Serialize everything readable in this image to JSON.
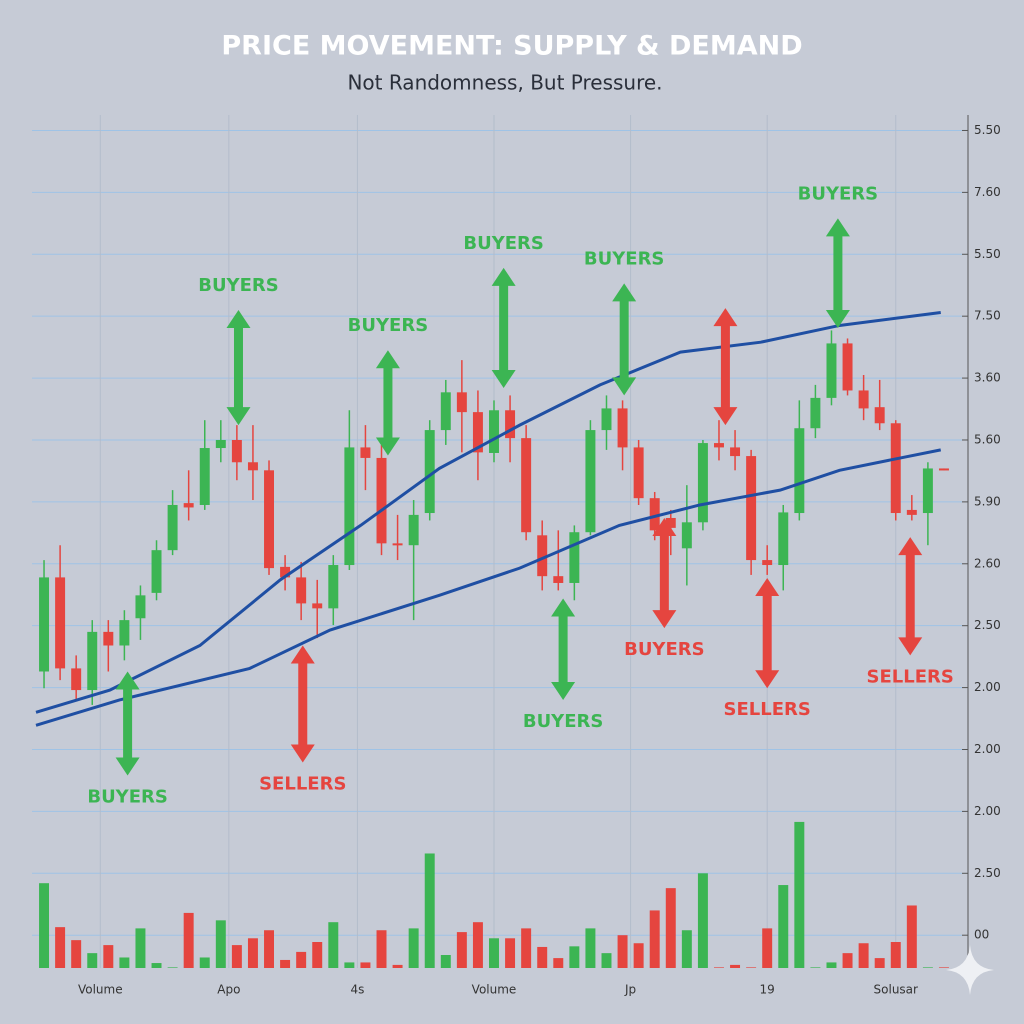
{
  "chart_data": {
    "type": "candlestick",
    "title": "PRICE MOVEMENT: SUPPLY & DEMAND",
    "subtitle": "Not Randomness, But Pressure.",
    "open": [
      4.26,
      5.78,
      4.31,
      3.96,
      4.9,
      4.68,
      5.12,
      5.53,
      6.22,
      6.98,
      6.95,
      7.87,
      8.0,
      7.64,
      7.51,
      5.95,
      5.78,
      5.36,
      5.28,
      5.98,
      7.88,
      7.71,
      6.33,
      6.3,
      6.82,
      8.16,
      8.77,
      8.45,
      7.79,
      8.48,
      8.03,
      6.46,
      5.8,
      5.69,
      6.51,
      8.16,
      8.51,
      7.88,
      7.06,
      6.74,
      6.25,
      6.67,
      7.95,
      7.88,
      7.74,
      6.06,
      5.98,
      6.82,
      8.19,
      8.68,
      9.56,
      8.8,
      8.53,
      8.27,
      6.87,
      6.82,
      7.54
    ],
    "high": [
      6.06,
      6.3,
      4.52,
      5.09,
      5.09,
      5.25,
      5.65,
      6.38,
      7.19,
      7.51,
      8.32,
      8.32,
      8.24,
      8.24,
      7.67,
      6.14,
      6.03,
      5.74,
      6.14,
      8.48,
      8.24,
      7.92,
      6.79,
      7.03,
      8.32,
      8.97,
      9.29,
      8.8,
      8.64,
      8.72,
      8.24,
      6.7,
      6.54,
      6.62,
      8.32,
      8.72,
      8.64,
      8.0,
      7.16,
      6.87,
      7.27,
      8.0,
      8.32,
      8.16,
      7.84,
      6.3,
      6.95,
      8.64,
      8.89,
      9.77,
      9.64,
      9.05,
      8.97,
      8.32,
      7.11,
      7.64,
      7.54
    ],
    "low": [
      3.99,
      4.12,
      3.8,
      3.72,
      4.26,
      4.44,
      4.77,
      5.41,
      6.14,
      6.7,
      6.87,
      7.64,
      7.35,
      7.03,
      5.82,
      5.57,
      5.09,
      4.8,
      5.01,
      5.9,
      7.19,
      6.14,
      6.06,
      5.09,
      6.7,
      7.92,
      7.8,
      7.35,
      7.64,
      7.64,
      6.38,
      5.57,
      5.57,
      5.41,
      6.46,
      7.84,
      7.51,
      6.95,
      6.38,
      6.14,
      5.65,
      6.54,
      7.67,
      7.51,
      5.82,
      5.82,
      5.57,
      6.7,
      8.03,
      8.56,
      8.72,
      8.32,
      8.16,
      6.7,
      6.7,
      6.3,
      7.51
    ],
    "close": [
      5.78,
      4.31,
      3.96,
      4.9,
      4.68,
      5.09,
      5.49,
      6.22,
      6.95,
      6.91,
      7.87,
      8.0,
      7.64,
      7.51,
      5.93,
      5.78,
      5.36,
      5.28,
      5.98,
      7.88,
      7.71,
      6.33,
      6.3,
      6.79,
      8.16,
      8.77,
      8.45,
      7.8,
      8.48,
      8.03,
      6.51,
      5.8,
      5.69,
      6.51,
      8.16,
      8.51,
      7.88,
      7.06,
      6.54,
      6.58,
      6.67,
      7.95,
      7.88,
      7.74,
      6.06,
      5.98,
      6.83,
      8.19,
      8.68,
      9.56,
      8.8,
      8.51,
      8.27,
      6.82,
      6.79,
      7.54,
      7.51
    ],
    "volume": [
      0.84,
      0.13,
      -0.08,
      -0.29,
      -0.16,
      -0.36,
      0.11,
      -0.45,
      -0.52,
      0.36,
      -0.36,
      0.24,
      -0.16,
      -0.05,
      0.08,
      -0.4,
      -0.27,
      -0.11,
      0.21,
      -0.44,
      -0.44,
      0.08,
      -0.48,
      0.11,
      1.32,
      -0.32,
      0.05,
      0.21,
      -0.05,
      -0.05,
      0.11,
      -0.19,
      -0.37,
      -0.18,
      0.11,
      -0.29,
      0.0,
      -0.13,
      0.4,
      0.76,
      0.08,
      1.0,
      -0.52,
      -0.48,
      -0.52,
      0.11,
      0.81,
      1.83,
      -0.52,
      -0.44,
      -0.29,
      -0.13,
      -0.37,
      -0.11,
      0.48,
      -0.52,
      -0.52
    ],
    "up_color": "#3cb553",
    "down_color": "#e5453f",
    "line_color": "#1f4fa3",
    "series": [
      {
        "x": [
          -0.5,
          4.1,
          9.7,
          14.7,
          19.7,
          24.6,
          29.6,
          34.6,
          39.6,
          44.6,
          49.5,
          55.8
        ],
        "values": [
          3.6,
          3.96,
          4.68,
          5.74,
          6.62,
          7.54,
          8.24,
          8.89,
          9.42,
          9.58,
          9.85,
          10.06
        ]
      },
      {
        "x": [
          -0.5,
          4.7,
          12.8,
          17.8,
          24.6,
          29.6,
          35.8,
          40.8,
          45.8,
          49.5,
          53.3,
          55.8
        ],
        "values": [
          3.39,
          3.8,
          4.31,
          4.93,
          5.49,
          5.93,
          6.62,
          6.95,
          7.19,
          7.51,
          7.71,
          7.84
        ]
      }
    ],
    "annotations": [
      {
        "text": "BUYERS",
        "color": "#3cb553",
        "x": 5.2,
        "from": 4.26,
        "to": 2.58,
        "label": "bottom"
      },
      {
        "text": "BUYERS",
        "color": "#3cb553",
        "x": 12.1,
        "from": 10.1,
        "to": 8.24,
        "label": "top"
      },
      {
        "text": "SELLERS",
        "color": "#e5453f",
        "x": 16.1,
        "from": 4.68,
        "to": 2.79,
        "label": "bottom"
      },
      {
        "text": "BUYERS",
        "color": "#3cb553",
        "x": 21.4,
        "from": 9.45,
        "to": 7.75,
        "label": "top"
      },
      {
        "text": "BUYERS",
        "color": "#3cb553",
        "x": 28.6,
        "from": 10.78,
        "to": 8.84,
        "label": "top"
      },
      {
        "text": "BUYERS",
        "color": "#3cb553",
        "x": 32.3,
        "from": 5.44,
        "to": 3.8,
        "label": "bottom"
      },
      {
        "text": "BUYERS",
        "color": "#3cb553",
        "x": 36.1,
        "from": 10.53,
        "to": 8.72,
        "label": "top"
      },
      {
        "text": "BUYERS",
        "color": "#e5453f",
        "x": 38.6,
        "from": 6.74,
        "to": 4.96,
        "label": "bottom"
      },
      {
        "color": "#e5453f",
        "x": 42.4,
        "from": 10.13,
        "to": 8.24
      },
      {
        "text": "SELLERS",
        "color": "#e5453f",
        "x": 45.0,
        "from": 5.77,
        "to": 3.99,
        "label": "bottom"
      },
      {
        "text": "BUYERS",
        "color": "#3cb553",
        "x": 49.4,
        "from": 11.58,
        "to": 9.81,
        "label": "top"
      },
      {
        "text": "SELLERS",
        "color": "#e5453f",
        "x": 53.9,
        "from": 6.43,
        "to": 4.52,
        "label": "bottom"
      }
    ],
    "xlim": [
      -0.5,
      56.5
    ],
    "xticks": [
      {
        "value": 3.5,
        "label": "Volume"
      },
      {
        "value": 11.5,
        "label": "Apo"
      },
      {
        "value": 19.5,
        "label": "4s"
      },
      {
        "value": 28,
        "label": "Volume"
      },
      {
        "value": 36.5,
        "label": "Jp"
      },
      {
        "value": 45,
        "label": "19"
      },
      {
        "value": 53,
        "label": "Solusar"
      }
    ],
    "ylim": [
      -0.53,
      13.25
    ],
    "yticks": [
      {
        "value": 13,
        "label": "5.50"
      },
      {
        "value": 12,
        "label": "7.60"
      },
      {
        "value": 11,
        "label": "5.50"
      },
      {
        "value": 10,
        "label": "7.50"
      },
      {
        "value": 9,
        "label": "3.60"
      },
      {
        "value": 8,
        "label": "5.60"
      },
      {
        "value": 7,
        "label": "5.90"
      },
      {
        "value": 6,
        "label": "2.60"
      },
      {
        "value": 5,
        "label": "2.50"
      },
      {
        "value": 4,
        "label": "2.00"
      },
      {
        "value": 3,
        "label": "2.00"
      },
      {
        "value": 2,
        "label": "2.00"
      },
      {
        "value": 1,
        "label": "2.50"
      },
      {
        "value": 0,
        "label": "00"
      }
    ],
    "grid": true
  }
}
